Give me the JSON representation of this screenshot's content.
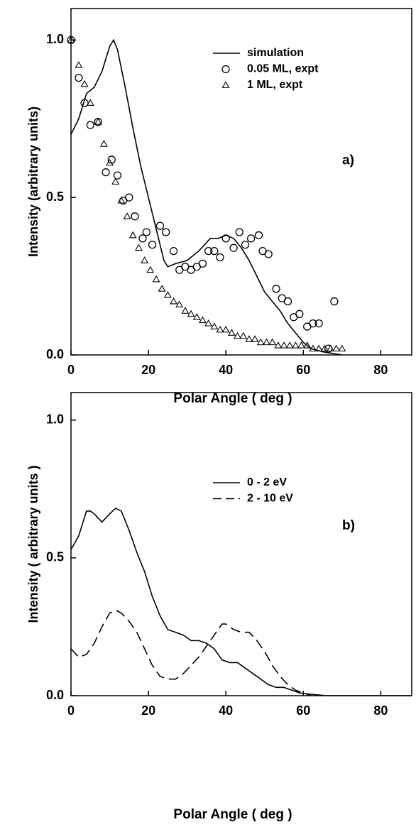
{
  "chart_data": [
    {
      "type": "line",
      "annotation": "a)",
      "xlabel": "Polar Angle ( deg )",
      "ylabel": "Intensity (arbitrary units)",
      "xlim": [
        0,
        88
      ],
      "ylim": [
        0,
        1.1
      ],
      "xticks": [
        0,
        20,
        40,
        60,
        80
      ],
      "yticks": [
        {
          "value": 0,
          "label": "0.0"
        },
        {
          "value": 0.5,
          "label": "0.5"
        },
        {
          "value": 1,
          "label": "1.0"
        }
      ],
      "legend": "upper right",
      "grid": false,
      "series": [
        {
          "name": "simulation",
          "color": "#000000",
          "marker": "line",
          "dash": false,
          "x": [
            0,
            2,
            4,
            6,
            8,
            10,
            11,
            12,
            14,
            16,
            18,
            20,
            22,
            24,
            25,
            27,
            30,
            33,
            36,
            38,
            40,
            42,
            44,
            46,
            48,
            50,
            52,
            54,
            56,
            58,
            60,
            62,
            65,
            70
          ],
          "values": [
            0.7,
            0.75,
            0.83,
            0.85,
            0.9,
            0.98,
            1.0,
            0.97,
            0.85,
            0.72,
            0.6,
            0.5,
            0.4,
            0.3,
            0.28,
            0.29,
            0.3,
            0.33,
            0.37,
            0.37,
            0.38,
            0.37,
            0.34,
            0.3,
            0.25,
            0.2,
            0.17,
            0.14,
            0.1,
            0.07,
            0.04,
            0.02,
            0.01,
            0.0
          ]
        },
        {
          "name": "0.05 ML, expt",
          "color": "#000000",
          "marker": "circle",
          "x": [
            0,
            2,
            3.5,
            5,
            7,
            9,
            10.5,
            12,
            13.5,
            15,
            16.5,
            18.5,
            19.5,
            21,
            23,
            24.5,
            26.5,
            28,
            29.5,
            31,
            32.5,
            34,
            35.5,
            37,
            38.5,
            40,
            42,
            43.5,
            45,
            46.5,
            48.5,
            49.5,
            51,
            53,
            54.5,
            56,
            57.5,
            59,
            61,
            62.5,
            64,
            66.5,
            68
          ],
          "values": [
            1.0,
            0.88,
            0.8,
            0.73,
            0.74,
            0.58,
            0.62,
            0.57,
            0.49,
            0.5,
            0.44,
            0.37,
            0.39,
            0.35,
            0.41,
            0.39,
            0.33,
            0.27,
            0.28,
            0.27,
            0.28,
            0.29,
            0.33,
            0.33,
            0.31,
            0.37,
            0.34,
            0.39,
            0.35,
            0.37,
            0.38,
            0.33,
            0.32,
            0.21,
            0.18,
            0.17,
            0.12,
            0.13,
            0.09,
            0.1,
            0.1,
            0.02,
            0.17
          ]
        },
        {
          "name": "1 ML, expt",
          "color": "#000000",
          "marker": "triangle",
          "x": [
            0,
            2,
            3.5,
            5,
            7,
            8.5,
            10,
            11.5,
            13,
            14.5,
            16,
            17.5,
            19,
            20.5,
            22,
            23.5,
            25,
            26.5,
            28,
            29.5,
            31,
            32.5,
            34,
            35.5,
            37,
            38.5,
            40,
            41.5,
            43,
            44.5,
            46,
            47.5,
            49,
            50.5,
            52,
            53.5,
            55,
            56.5,
            58,
            59.5,
            61,
            62.5,
            64,
            65.5,
            67,
            68.5,
            70
          ],
          "values": [
            1.0,
            0.92,
            0.86,
            0.8,
            0.74,
            0.67,
            0.61,
            0.55,
            0.49,
            0.44,
            0.38,
            0.34,
            0.3,
            0.27,
            0.24,
            0.21,
            0.19,
            0.17,
            0.16,
            0.14,
            0.13,
            0.12,
            0.11,
            0.1,
            0.09,
            0.08,
            0.08,
            0.07,
            0.06,
            0.06,
            0.05,
            0.05,
            0.04,
            0.04,
            0.04,
            0.03,
            0.03,
            0.03,
            0.03,
            0.03,
            0.03,
            0.02,
            0.02,
            0.02,
            0.02,
            0.02,
            0.02
          ]
        }
      ]
    },
    {
      "type": "line",
      "annotation": "b)",
      "xlabel": "Polar Angle ( deg )",
      "ylabel": "Intensity ( arbitrary units )",
      "xlim": [
        0,
        88
      ],
      "ylim": [
        0,
        1.1
      ],
      "xticks": [
        0,
        20,
        40,
        60,
        80
      ],
      "yticks": [
        {
          "value": 0,
          "label": "0.0"
        },
        {
          "value": 0.5,
          "label": "0.5"
        },
        {
          "value": 1,
          "label": "1.0"
        }
      ],
      "legend": "upper right",
      "grid": false,
      "series": [
        {
          "name": "0 -  2 eV",
          "color": "#000000",
          "marker": "line",
          "dash": false,
          "x": [
            0,
            2,
            4,
            5,
            6,
            8,
            10,
            11.5,
            13,
            15,
            17,
            19,
            21,
            23,
            25,
            27,
            29,
            31,
            33,
            35,
            37,
            39,
            41,
            43,
            45,
            47,
            49,
            51,
            53,
            55,
            57,
            59,
            62,
            66,
            75,
            88
          ],
          "values": [
            0.53,
            0.58,
            0.67,
            0.67,
            0.66,
            0.63,
            0.66,
            0.68,
            0.67,
            0.6,
            0.52,
            0.45,
            0.36,
            0.29,
            0.24,
            0.23,
            0.22,
            0.2,
            0.2,
            0.19,
            0.17,
            0.13,
            0.12,
            0.12,
            0.1,
            0.08,
            0.06,
            0.04,
            0.03,
            0.03,
            0.02,
            0.01,
            0.005,
            0,
            0,
            0
          ]
        },
        {
          "name": "2 - 10 eV",
          "color": "#000000",
          "marker": "line",
          "dash": true,
          "x": [
            0,
            2,
            4,
            6,
            8,
            10,
            11.5,
            13,
            15,
            17,
            19,
            21,
            23,
            25,
            27,
            29,
            31,
            33,
            35,
            37,
            39,
            40,
            42,
            44,
            46,
            48,
            50,
            52,
            54,
            56,
            58,
            60,
            62
          ],
          "values": [
            0.17,
            0.14,
            0.15,
            0.19,
            0.25,
            0.3,
            0.31,
            0.3,
            0.27,
            0.23,
            0.17,
            0.11,
            0.07,
            0.06,
            0.06,
            0.08,
            0.11,
            0.14,
            0.18,
            0.22,
            0.26,
            0.26,
            0.24,
            0.23,
            0.23,
            0.2,
            0.16,
            0.11,
            0.07,
            0.04,
            0.02,
            0.01,
            0
          ]
        }
      ]
    }
  ]
}
